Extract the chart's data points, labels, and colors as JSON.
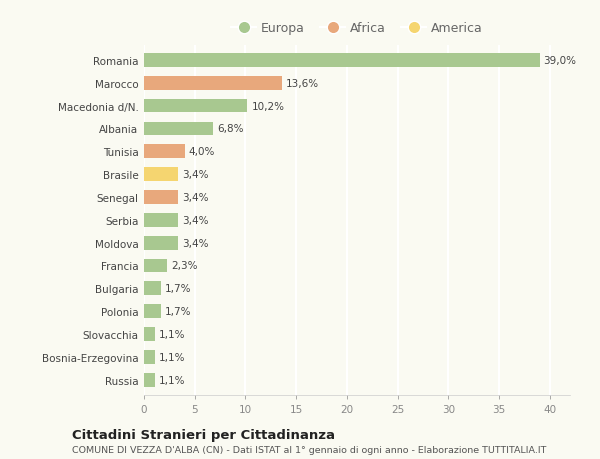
{
  "countries": [
    "Romania",
    "Marocco",
    "Macedonia d/N.",
    "Albania",
    "Tunisia",
    "Brasile",
    "Senegal",
    "Serbia",
    "Moldova",
    "Francia",
    "Bulgaria",
    "Polonia",
    "Slovacchia",
    "Bosnia-Erzegovina",
    "Russia"
  ],
  "values": [
    39.0,
    13.6,
    10.2,
    6.8,
    4.0,
    3.4,
    3.4,
    3.4,
    3.4,
    2.3,
    1.7,
    1.7,
    1.1,
    1.1,
    1.1
  ],
  "labels": [
    "39,0%",
    "13,6%",
    "10,2%",
    "6,8%",
    "4,0%",
    "3,4%",
    "3,4%",
    "3,4%",
    "3,4%",
    "2,3%",
    "1,7%",
    "1,7%",
    "1,1%",
    "1,1%",
    "1,1%"
  ],
  "continents": [
    "Europa",
    "Africa",
    "Europa",
    "Europa",
    "Africa",
    "America",
    "Africa",
    "Europa",
    "Europa",
    "Europa",
    "Europa",
    "Europa",
    "Europa",
    "Europa",
    "Europa"
  ],
  "colors": {
    "Europa": "#a8c890",
    "Africa": "#e8a87c",
    "America": "#f5d570"
  },
  "title": "Cittadini Stranieri per Cittadinanza",
  "subtitle": "COMUNE DI VEZZA D'ALBA (CN) - Dati ISTAT al 1° gennaio di ogni anno - Elaborazione TUTTITALIA.IT",
  "xlim": [
    0,
    42
  ],
  "background_color": "#fafaf2",
  "grid_color": "#ffffff",
  "bar_height": 0.6,
  "legend_entries": [
    "Europa",
    "Africa",
    "America"
  ]
}
